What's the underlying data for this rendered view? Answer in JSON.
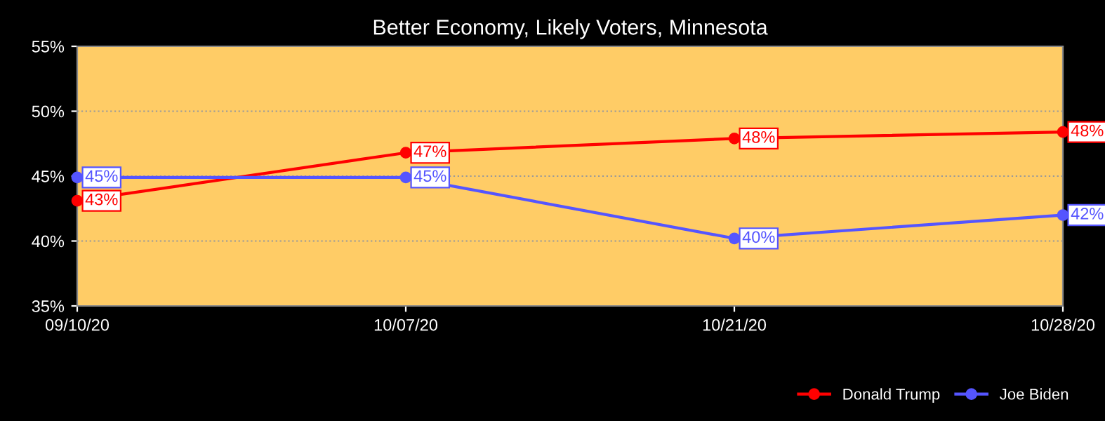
{
  "chart_data": {
    "type": "line",
    "title": "Better Economy, Likely Voters, Minnesota",
    "categories": [
      "09/10/20",
      "10/07/20",
      "10/21/20",
      "10/28/20"
    ],
    "series": [
      {
        "name": "Donald Trump",
        "color": "#ff0000",
        "values": [
          43.1,
          46.8,
          47.9,
          48.4
        ],
        "value_labels": [
          "43%",
          "47%",
          "48%",
          "48%"
        ]
      },
      {
        "name": "Joe Biden",
        "color": "#5555ff",
        "values": [
          44.9,
          44.9,
          40.2,
          42.0
        ],
        "value_labels": [
          "45%",
          "45%",
          "40%",
          "42%"
        ]
      }
    ],
    "ylim": [
      35,
      55
    ],
    "yticks": [
      {
        "value": 35,
        "label": "35%"
      },
      {
        "value": 40,
        "label": "40%"
      },
      {
        "value": 45,
        "label": "45%"
      },
      {
        "value": 50,
        "label": "50%"
      },
      {
        "value": 55,
        "label": "55%"
      }
    ],
    "grid": "y",
    "legend": "bottom right",
    "marker": "circle",
    "line_style": "solid"
  }
}
